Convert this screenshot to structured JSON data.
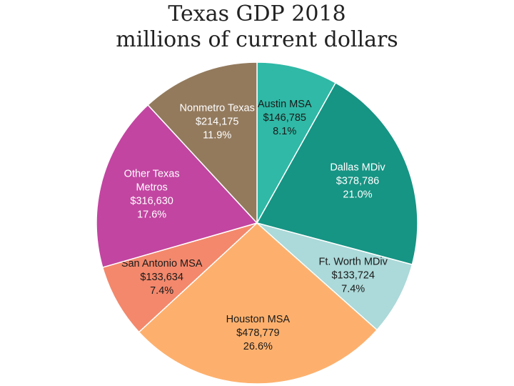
{
  "chart_data": {
    "type": "pie",
    "title": [
      "Texas GDP 2018",
      "millions of current dollars"
    ],
    "slices": [
      {
        "name": "Austin MSA",
        "label_lines": [
          "Austin MSA"
        ],
        "value": 146785,
        "value_label": "$146,785",
        "percent_label": "8.1%",
        "color": "#2fb9a6",
        "text_color": "#1a1a1a"
      },
      {
        "name": "Dallas MDiv",
        "label_lines": [
          "Dallas MDiv"
        ],
        "value": 378786,
        "value_label": "$378,786",
        "percent_label": "21.0%",
        "color": "#169484",
        "text_color": "#ffffff"
      },
      {
        "name": "Ft. Worth MDiv",
        "label_lines": [
          "Ft. Worth MDiv"
        ],
        "value": 133724,
        "value_label": "$133,724",
        "percent_label": "7.4%",
        "color": "#acd9d9",
        "text_color": "#1a1a1a"
      },
      {
        "name": "Houston MSA",
        "label_lines": [
          "Houston MSA"
        ],
        "value": 478779,
        "value_label": "$478,779",
        "percent_label": "26.6%",
        "color": "#fdb06d",
        "text_color": "#1a1a1a"
      },
      {
        "name": "San Antonio MSA",
        "label_lines": [
          "San Antonio MSA"
        ],
        "value": 133634,
        "value_label": "$133,634",
        "percent_label": "7.4%",
        "color": "#f3886c",
        "text_color": "#1a1a1a"
      },
      {
        "name": "Other Texas Metros",
        "label_lines": [
          "Other Texas",
          "Metros"
        ],
        "value": 316630,
        "value_label": "$316,630",
        "percent_label": "17.6%",
        "color": "#c245a1",
        "text_color": "#ffffff"
      },
      {
        "name": "Nonmetro Texas",
        "label_lines": [
          "Nonmetro Texas"
        ],
        "value": 214175,
        "value_label": "$214,175",
        "percent_label": "11.9%",
        "color": "#937a5d",
        "text_color": "#ffffff"
      }
    ]
  }
}
